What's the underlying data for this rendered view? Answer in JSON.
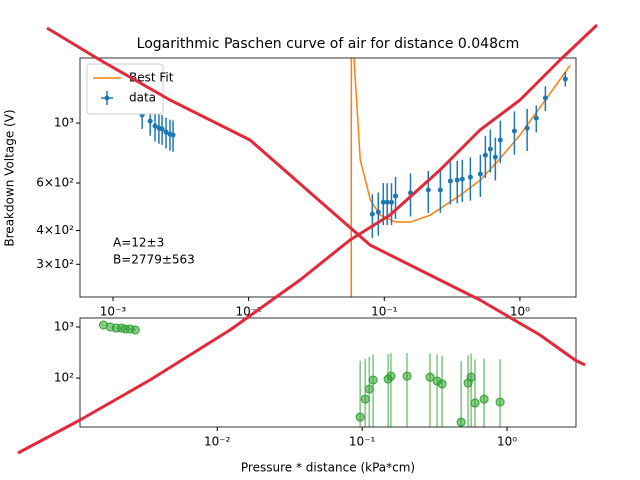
{
  "chart_data": [
    {
      "type": "errorbar",
      "title": "Logarithmic Paschen curve of air for distance 0.048cm",
      "ylabel": "Breakdown Voltage (V)",
      "xscale": "log",
      "yscale": "log",
      "xlim": [
        0.000571,
        2.59
      ],
      "ylim": [
        227,
        1741
      ],
      "xticks": [
        {
          "value": 0.001,
          "label": "10⁻³"
        },
        {
          "value": 0.01,
          "label": "10⁻²"
        },
        {
          "value": 0.1,
          "label": "10⁻¹"
        },
        {
          "value": 1,
          "label": "10⁰"
        }
      ],
      "yticks": [
        {
          "value": 300,
          "label": "3×10²"
        },
        {
          "value": 400,
          "label": "4×10²"
        },
        {
          "value": 600,
          "label": "6×10²"
        },
        {
          "value": 1000,
          "label": "10³"
        }
      ],
      "legend": "upper left",
      "annotations": [
        "A=12±3",
        "B=2779±563"
      ],
      "series": [
        {
          "name": "Best Fit",
          "type": "line",
          "color": "#ff7f0e",
          "x": [
            0.057,
            0.0572,
            0.0591,
            0.0665,
            0.0789,
            0.0934,
            0.121,
            0.156,
            0.218,
            0.363,
            0.511,
            0.717,
            1.0,
            1.54,
            2.35
          ],
          "values": [
            100,
            3000,
            1900,
            730,
            519,
            456,
            430,
            430,
            456,
            541,
            615,
            741,
            903,
            1217,
            1640
          ]
        },
        {
          "name": "data",
          "type": "errorbar",
          "color": "#1f77b4",
          "x": [
            0.00164,
            0.00188,
            0.00204,
            0.00218,
            0.0023,
            0.00246,
            0.00263,
            0.00277,
            0.0816,
            0.0903,
            0.0983,
            0.105,
            0.113,
            0.121,
            0.156,
            0.211,
            0.259,
            0.307,
            0.345,
            0.376,
            0.431,
            0.511,
            0.556,
            0.605,
            0.659,
            0.717,
            0.91,
            1.13,
            1.32,
            1.54,
            2.16
          ],
          "values": [
            1071,
            1017,
            975,
            958,
            950,
            926,
            910,
            903,
            460,
            468,
            509,
            509,
            509,
            537,
            551,
            565,
            565,
            610,
            615,
            620,
            631,
            648,
            761,
            801,
            748,
            865,
            934,
            958,
            1043,
            1238,
            1455
          ],
          "errors": [
            120,
            120,
            120,
            120,
            120,
            120,
            120,
            120,
            85,
            85,
            90,
            90,
            90,
            95,
            100,
            100,
            100,
            110,
            110,
            110,
            115,
            115,
            135,
            145,
            135,
            155,
            170,
            170,
            120,
            130,
            90
          ]
        }
      ]
    },
    {
      "type": "errorbar",
      "xlabel": "Pressure * distance (kPa*cm)",
      "xscale": "log",
      "yscale": "log",
      "xlim": [
        0.00113,
        2.99
      ],
      "ylim": [
        11,
        1500
      ],
      "xticks": [
        {
          "value": 0.01,
          "label": "10⁻²"
        },
        {
          "value": 0.1,
          "label": "10⁻¹"
        },
        {
          "value": 1,
          "label": "10⁰"
        }
      ],
      "yticks": [
        {
          "value": 100,
          "label": "10²"
        },
        {
          "value": 1000,
          "label": "10³"
        }
      ],
      "series": [
        {
          "type": "errorbar",
          "color": "#2ca02c",
          "x": [
            0.00164,
            0.00183,
            0.00201,
            0.00218,
            0.00232,
            0.00251,
            0.00272,
            0.0969,
            0.105,
            0.112,
            0.119,
            0.151,
            0.158,
            0.204,
            0.294,
            0.329,
            0.356,
            0.482,
            0.538,
            0.565,
            0.601,
            0.694,
            0.895
          ],
          "values": [
            1094,
            1000,
            955,
            955,
            914,
            914,
            874,
            17.2,
            38.7,
            60.8,
            91.4,
            95.6,
            109,
            109,
            104,
            87.3,
            76.3,
            13.7,
            79.8,
            104,
            32.4,
            38.7,
            33.8
          ],
          "errors": [
            20,
            20,
            20,
            20,
            20,
            20,
            20,
            200,
            200,
            200,
            200,
            200,
            200,
            200,
            200,
            200,
            200,
            200,
            200,
            200,
            200,
            200,
            200
          ]
        }
      ]
    }
  ]
}
